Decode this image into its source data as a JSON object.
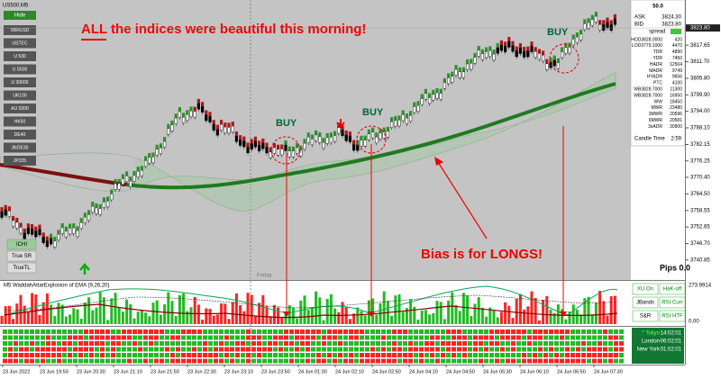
{
  "window": {
    "symbol": "US500.M5",
    "hide": "Hide",
    "symbols": [
      "XBRUSD",
      "USTEC",
      "U 530",
      "U S500",
      "U 30000",
      "UK100",
      "AU 0200",
      "HK50",
      "DE40",
      "JtkDE30",
      "JP225"
    ],
    "buttons": [
      "ICHI",
      "True SR",
      "TrueTL"
    ],
    "day": "Friday",
    "pips": "Pips 0.0"
  },
  "annotations": {
    "headline": "ALL the indices were beautiful this morning!",
    "buy": [
      "BUY",
      "BUY",
      "BUY"
    ],
    "bias": "Bias is for LONGS!"
  },
  "price_axis": {
    "ylim": [
      3733.7,
      3833.8
    ],
    "yticks": [
      3817.65,
      {
        "value": 3811.7,
        "label": "3811.70"
      },
      {
        "value": 3805.8,
        "label": "3805.80"
      },
      {
        "value": 3799.9,
        "label": "3799.90"
      },
      {
        "value": 3794,
        "label": "3794.00"
      },
      {
        "value": 3788.1,
        "label": "3788.10"
      },
      3782.15,
      3776.25,
      {
        "value": 3770.4,
        "label": "3770.40"
      },
      {
        "value": 3764.5,
        "label": "3764.50"
      },
      3758.55,
      3752.65,
      {
        "value": 3746.7,
        "label": "3746.70"
      },
      3740.85
    ],
    "current": {
      "value": 3823.8,
      "label": "3823.80"
    }
  },
  "info_panel": {
    "top": "50.0",
    "ask": "ASK",
    "ask_value": "3824.30",
    "bid": "BID",
    "bid_value": "3823.80",
    "spread": "spread",
    "rows": [
      [
        "HOD3828.0000",
        "420"
      ],
      [
        "LOD3779.1000",
        "4470"
      ],
      [
        "TDR",
        "4890"
      ],
      [
        "YDR",
        "7450"
      ],
      [
        "HADR",
        "12504"
      ],
      [
        "MADR",
        "9749"
      ],
      [
        "HYADR",
        "9656"
      ],
      [
        "PTC",
        "4100"
      ],
      [
        "WB3828.7000",
        "11300"
      ],
      [
        "WB3828.7000",
        "16950"
      ],
      [
        "WW",
        "18450"
      ],
      [
        "MWR",
        "23480"
      ],
      [
        "3MWR",
        "20596"
      ],
      [
        "6MWR",
        "20581"
      ],
      [
        "3xADR",
        "30900"
      ]
    ],
    "candle_time": "Candle Time",
    "candle_time_value": "2:59"
  },
  "indicator": {
    "title": "M5 WaddahAttarExplosion of EMA (9,26,20)",
    "axis_max": "273.9914",
    "axis_zero": "0.00",
    "buttons": [
      [
        "XU On",
        "HaK-off"
      ],
      [
        "JBands",
        "RSI Curr"
      ],
      [
        "S&R",
        "RSI HTF"
      ]
    ]
  },
  "sessions": [
    [
      "* Tokyo",
      "14:02:01"
    ],
    [
      "London",
      "06:02:01"
    ],
    [
      "New York",
      "01:02:01"
    ]
  ],
  "time_axis": {
    "labels": [
      "23 Jun 2022",
      "23 Jun 19:50",
      "23 Jun 20:30",
      "23 Jun 21:10",
      "23 Jun 21:50",
      "23 Jun 22:30",
      "23 Jun 23:10",
      "23 Jun 23:50",
      "24 Jun 01:30",
      "24 Jun 02:10",
      "24 Jun 02:50",
      "24 Jun 04:10",
      "24 Jun 04:50",
      "24 Jun 05:30",
      "24 Jun 06:10",
      "24 Jun 06:50",
      "24 Jun 07:30"
    ]
  }
}
